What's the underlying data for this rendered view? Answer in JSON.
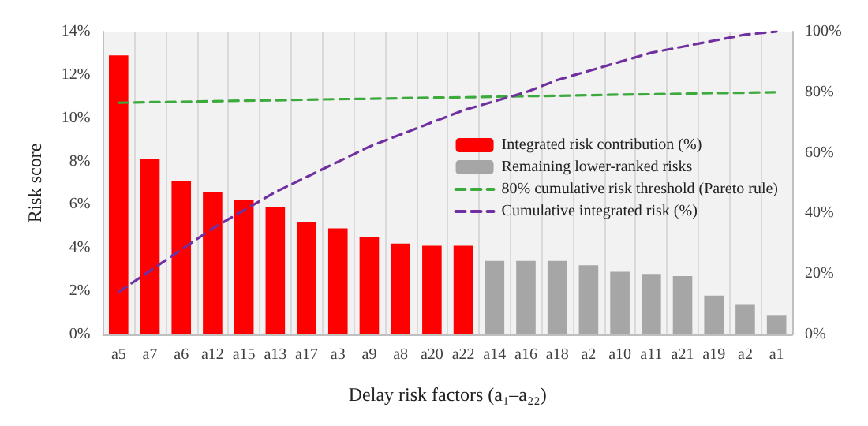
{
  "chart_data": {
    "type": "bar",
    "xlabel": "Delay risk factors (a₁–a₂₂)",
    "ylabel": "Risk score",
    "categories": [
      "a5",
      "a7",
      "a6",
      "a12",
      "a15",
      "a13",
      "a17",
      "a3",
      "a9",
      "a8",
      "a20",
      "a22",
      "a14",
      "a16",
      "a18",
      "a2",
      "a10",
      "a11",
      "a21",
      "a19",
      "a2",
      "a1"
    ],
    "series": [
      {
        "name": "Integrated risk contribution (%)",
        "color": "#ff0000",
        "values": [
          12.9,
          8.1,
          7.1,
          6.6,
          6.2,
          5.9,
          5.2,
          4.9,
          4.5,
          4.2,
          4.1,
          4.1,
          null,
          null,
          null,
          null,
          null,
          null,
          null,
          null,
          null,
          null
        ]
      },
      {
        "name": "Remaining lower-ranked risks",
        "color": "#a6a6a6",
        "values": [
          null,
          null,
          null,
          null,
          null,
          null,
          null,
          null,
          null,
          null,
          null,
          null,
          3.4,
          3.4,
          3.4,
          3.2,
          2.9,
          2.8,
          2.7,
          1.8,
          1.4,
          0.9
        ]
      },
      {
        "name": "80% cumulative risk threshold (Pareto rule)",
        "type": "line",
        "axis": "y2",
        "color": "#3daa3d",
        "line_style": "dashed",
        "marker": "none",
        "values": [
          76.5,
          76.7,
          76.8,
          77.0,
          77.2,
          77.3,
          77.5,
          77.7,
          77.8,
          78.0,
          78.2,
          78.3,
          78.5,
          78.7,
          78.8,
          79.0,
          79.2,
          79.3,
          79.5,
          79.7,
          79.8,
          80.0
        ]
      },
      {
        "name": "Cumulative integrated risk (%)",
        "type": "line",
        "axis": "y2",
        "color": "#7030a0",
        "line_style": "dashed",
        "marker": "none",
        "values": [
          14,
          21,
          28,
          35,
          41,
          47,
          52,
          57,
          62,
          66,
          70,
          74,
          77,
          80,
          84,
          87,
          90,
          93,
          95,
          97,
          99,
          100
        ]
      }
    ],
    "ylim": [
      0,
      14
    ],
    "yticks": [
      {
        "value": 0,
        "label": "0%"
      },
      {
        "value": 2,
        "label": "2%"
      },
      {
        "value": 4,
        "label": "4%"
      },
      {
        "value": 6,
        "label": "6%"
      },
      {
        "value": 8,
        "label": "8%"
      },
      {
        "value": 10,
        "label": "10%"
      },
      {
        "value": 12,
        "label": "12%"
      },
      {
        "value": 14,
        "label": "14%"
      }
    ],
    "y2lim": [
      0,
      100
    ],
    "y2ticks": [
      {
        "value": 0,
        "label": "0%"
      },
      {
        "value": 20,
        "label": "20%"
      },
      {
        "value": 40,
        "label": "40%"
      },
      {
        "value": 60,
        "label": "60%"
      },
      {
        "value": 80,
        "label": "80%"
      },
      {
        "value": 100,
        "label": "100%"
      }
    ],
    "grid": "x",
    "legend": "right"
  }
}
